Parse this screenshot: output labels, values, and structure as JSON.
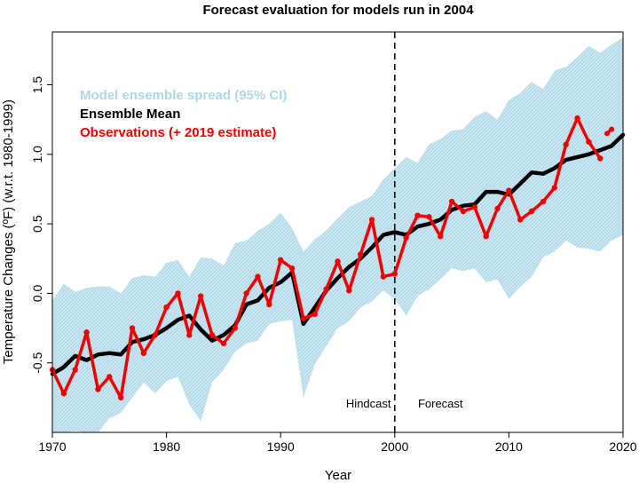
{
  "chart_data": {
    "type": "line",
    "title": "Forecast evaluation for models run in 2004",
    "xlabel": "Year",
    "ylabel": "Temperature Changes (ºF) (w.r.t. 1980-1999)",
    "xlim": [
      1970,
      2020
    ],
    "ylim": [
      -1.0,
      1.88
    ],
    "x_ticks": [
      1970,
      1980,
      1990,
      2000,
      2010,
      2020
    ],
    "y_ticks": [
      -0.5,
      0.0,
      0.5,
      1.0,
      1.5
    ],
    "y_tick_labels": [
      "-0.5",
      "0.0",
      "0.5",
      "1.0",
      "1.5"
    ],
    "grid": false,
    "forecast_start": 2000,
    "annotations": [
      {
        "text": "Hindcast",
        "x": 1997.7,
        "y": -0.82,
        "anchor": "middle"
      },
      {
        "text": "Forecast",
        "x": 2004,
        "y": -0.82,
        "anchor": "middle"
      }
    ],
    "legend": [
      {
        "label": "Model ensemble spread (95% CI)",
        "color": "#add8e6"
      },
      {
        "label": "Ensemble Mean",
        "color": "#000000"
      },
      {
        "label": "Observations (+ 2019 estimate)",
        "color": "#ee0000"
      }
    ],
    "spread": {
      "name": "Model ensemble spread (95% CI)",
      "x": [
        1970,
        1971,
        1972,
        1973,
        1974,
        1975,
        1976,
        1977,
        1978,
        1979,
        1980,
        1981,
        1982,
        1983,
        1984,
        1985,
        1986,
        1987,
        1988,
        1989,
        1990,
        1991,
        1992,
        1993,
        1994,
        1995,
        1996,
        1997,
        1998,
        1999,
        2000,
        2001,
        2002,
        2003,
        2004,
        2005,
        2006,
        2007,
        2008,
        2009,
        2010,
        2011,
        2012,
        2013,
        2014,
        2015,
        2016,
        2017,
        2018,
        2019,
        2020
      ],
      "upper": [
        -0.05,
        0.07,
        0.01,
        0.04,
        0.05,
        0.05,
        0.0,
        0.11,
        0.13,
        0.12,
        0.22,
        0.24,
        0.12,
        0.26,
        0.25,
        0.2,
        0.36,
        0.38,
        0.45,
        0.5,
        0.58,
        0.47,
        0.3,
        0.39,
        0.45,
        0.54,
        0.62,
        0.66,
        0.7,
        0.82,
        0.9,
        0.98,
        0.94,
        1.07,
        1.11,
        1.17,
        1.18,
        1.27,
        1.31,
        1.25,
        1.39,
        1.44,
        1.52,
        1.47,
        1.6,
        1.63,
        1.7,
        1.78,
        1.73,
        1.79,
        1.84
      ],
      "lower": [
        -1.0,
        -1.0,
        -0.99,
        -1.0,
        -1.0,
        -0.9,
        -0.86,
        -0.75,
        -0.64,
        -0.72,
        -0.63,
        -0.6,
        -0.8,
        -0.92,
        -0.64,
        -0.55,
        -0.42,
        -0.36,
        -0.34,
        -0.22,
        -0.2,
        -0.19,
        -0.75,
        -0.51,
        -0.38,
        -0.25,
        -0.2,
        -0.1,
        -0.06,
        0.02,
        -0.04,
        -0.16,
        -0.02,
        0.03,
        0.1,
        0.18,
        0.16,
        0.18,
        0.08,
        0.1,
        -0.04,
        0.05,
        0.12,
        0.26,
        0.3,
        0.38,
        0.33,
        0.32,
        0.3,
        0.38,
        0.42
      ]
    },
    "mean": {
      "name": "Ensemble Mean",
      "x": [
        1970,
        1971,
        1972,
        1973,
        1974,
        1975,
        1976,
        1977,
        1978,
        1979,
        1980,
        1981,
        1982,
        1983,
        1984,
        1985,
        1986,
        1987,
        1988,
        1989,
        1990,
        1991,
        1992,
        1993,
        1994,
        1995,
        1996,
        1997,
        1998,
        1999,
        2000,
        2001,
        2002,
        2003,
        2004,
        2005,
        2006,
        2007,
        2008,
        2009,
        2010,
        2011,
        2012,
        2013,
        2014,
        2015,
        2016,
        2017,
        2018,
        2019,
        2020
      ],
      "values": [
        -0.58,
        -0.53,
        -0.45,
        -0.48,
        -0.44,
        -0.43,
        -0.44,
        -0.35,
        -0.33,
        -0.3,
        -0.25,
        -0.19,
        -0.16,
        -0.26,
        -0.34,
        -0.3,
        -0.23,
        -0.08,
        -0.05,
        0.04,
        0.08,
        0.15,
        -0.22,
        -0.1,
        0.02,
        0.11,
        0.19,
        0.25,
        0.33,
        0.42,
        0.44,
        0.42,
        0.48,
        0.5,
        0.53,
        0.6,
        0.63,
        0.64,
        0.73,
        0.73,
        0.71,
        0.79,
        0.87,
        0.86,
        0.9,
        0.96,
        0.98,
        1.0,
        1.03,
        1.06,
        1.14
      ]
    },
    "observations": {
      "name": "Observations (+ 2019 estimate)",
      "x": [
        1970,
        1971,
        1972,
        1973,
        1974,
        1975,
        1976,
        1977,
        1978,
        1979,
        1980,
        1981,
        1982,
        1983,
        1984,
        1985,
        1986,
        1987,
        1988,
        1989,
        1990,
        1991,
        1992,
        1993,
        1994,
        1995,
        1996,
        1997,
        1998,
        1999,
        2000,
        2001,
        2002,
        2003,
        2004,
        2005,
        2006,
        2007,
        2008,
        2009,
        2010,
        2011,
        2012,
        2013,
        2014,
        2015,
        2016,
        2017,
        2018
      ],
      "values": [
        -0.55,
        -0.72,
        -0.55,
        -0.28,
        -0.69,
        -0.6,
        -0.75,
        -0.25,
        -0.43,
        -0.3,
        -0.1,
        0.0,
        -0.3,
        -0.02,
        -0.3,
        -0.36,
        -0.25,
        0.0,
        0.12,
        -0.08,
        0.24,
        0.18,
        -0.18,
        -0.15,
        0.03,
        0.23,
        0.02,
        0.28,
        0.53,
        0.12,
        0.14,
        0.4,
        0.56,
        0.55,
        0.41,
        0.66,
        0.59,
        0.62,
        0.41,
        0.61,
        0.74,
        0.53,
        0.59,
        0.66,
        0.76,
        1.07,
        1.26,
        1.09,
        0.97
      ],
      "estimate_2019": {
        "x": [
          2018.6,
          2019
        ],
        "values": [
          1.15,
          1.18
        ]
      }
    }
  }
}
